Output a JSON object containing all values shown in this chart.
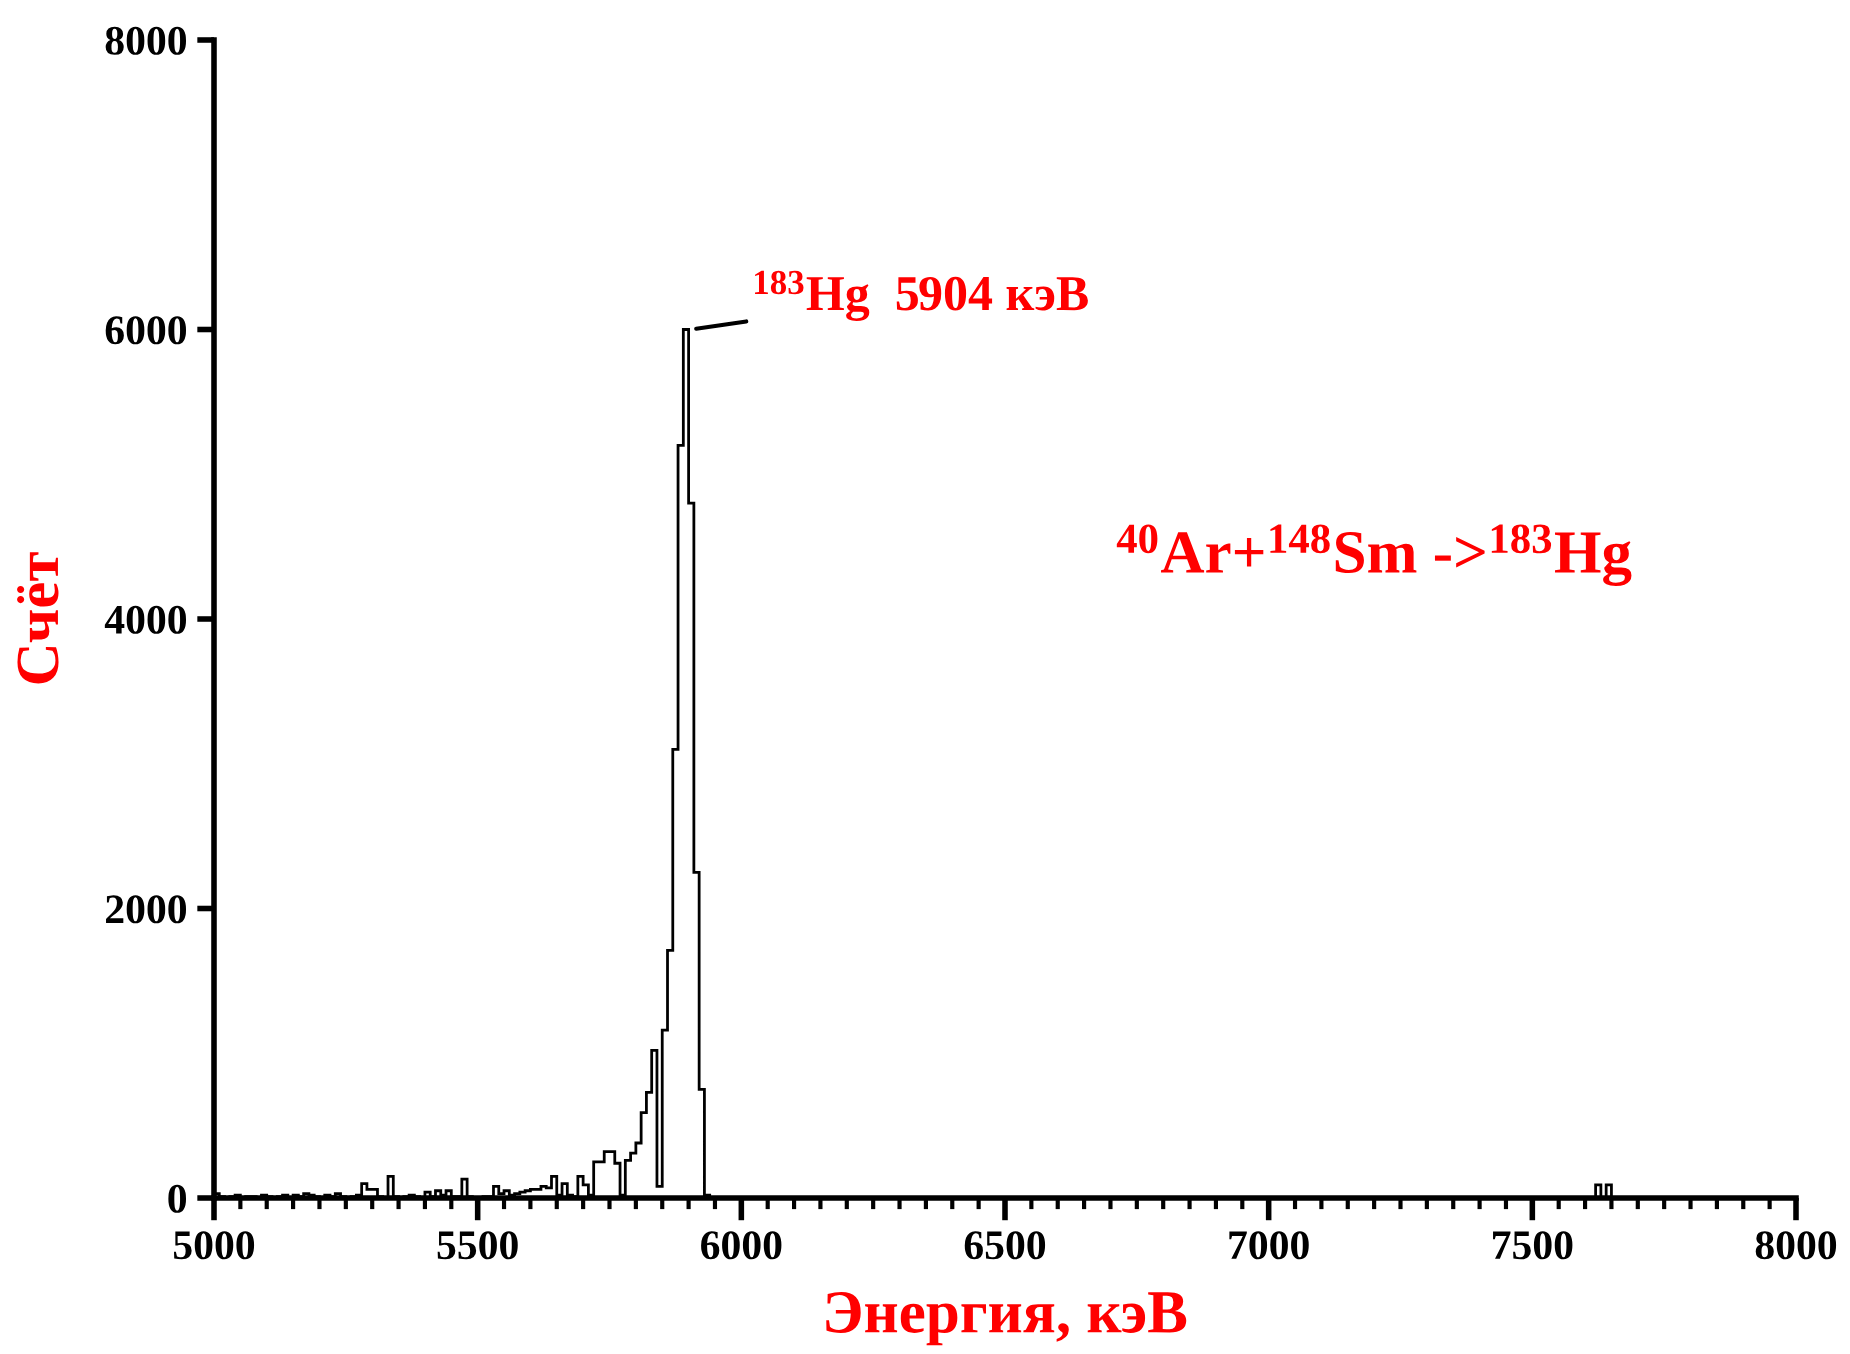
{
  "chart_data": {
    "type": "histogram",
    "xlabel": "Энергия, кэВ",
    "ylabel": "Счёт",
    "color": "#000000",
    "bins": [
      5000,
      5010,
      5020,
      5030,
      5040,
      5050,
      5060,
      5070,
      5080,
      5090,
      5100,
      5110,
      5120,
      5130,
      5140,
      5150,
      5160,
      5170,
      5180,
      5190,
      5200,
      5210,
      5220,
      5230,
      5240,
      5250,
      5260,
      5270,
      5280,
      5290,
      5300,
      5310,
      5320,
      5330,
      5340,
      5350,
      5360,
      5370,
      5380,
      5390,
      5400,
      5410,
      5420,
      5430,
      5440,
      5450,
      5460,
      5470,
      5480,
      5490,
      5500,
      5510,
      5520,
      5530,
      5540,
      5550,
      5560,
      5570,
      5580,
      5590,
      5600,
      5610,
      5620,
      5630,
      5640,
      5650,
      5660,
      5670,
      5680,
      5690,
      5700,
      5710,
      5720,
      5730,
      5740,
      5750,
      5760,
      5770,
      5780,
      5790,
      5800,
      5810,
      5820,
      5830,
      5840,
      5850,
      5860,
      5870,
      5880,
      5890,
      5900,
      5910,
      5920,
      5930,
      5940,
      5950,
      7620,
      7630,
      7640,
      7650,
      8000
    ],
    "values": [
      30,
      10,
      0,
      10,
      20,
      0,
      10,
      10,
      0,
      20,
      10,
      0,
      10,
      20,
      0,
      20,
      10,
      30,
      20,
      10,
      0,
      20,
      10,
      30,
      10,
      0,
      10,
      20,
      100,
      60,
      60,
      10,
      0,
      150,
      10,
      0,
      10,
      20,
      10,
      0,
      40,
      10,
      50,
      20,
      50,
      10,
      10,
      130,
      10,
      0,
      0,
      10,
      10,
      80,
      30,
      50,
      20,
      30,
      40,
      50,
      60,
      60,
      80,
      70,
      150,
      20,
      100,
      20,
      10,
      150,
      90,
      20,
      250,
      250,
      320,
      320,
      240,
      20,
      260,
      310,
      380,
      590,
      730,
      1020,
      80,
      1160,
      1710,
      3100,
      5200,
      6000,
      4800,
      2250,
      750,
      20,
      0,
      0,
      90,
      0,
      90,
      0
    ],
    "xlim": [
      5000,
      8000
    ],
    "xticks": [
      5000,
      5500,
      6000,
      6500,
      7000,
      7500,
      8000
    ],
    "ylim": [
      0,
      8000
    ],
    "yticks": [
      0,
      2000,
      4000,
      6000,
      8000
    ],
    "grid": false,
    "annotations": [
      {
        "text": "$^{183}$Hg  5904 кэВ",
        "x": 5904,
        "y": 6000
      },
      "$^{40}$Ar+$^{148}$Sm ->$^{183}$Hg"
    ]
  }
}
